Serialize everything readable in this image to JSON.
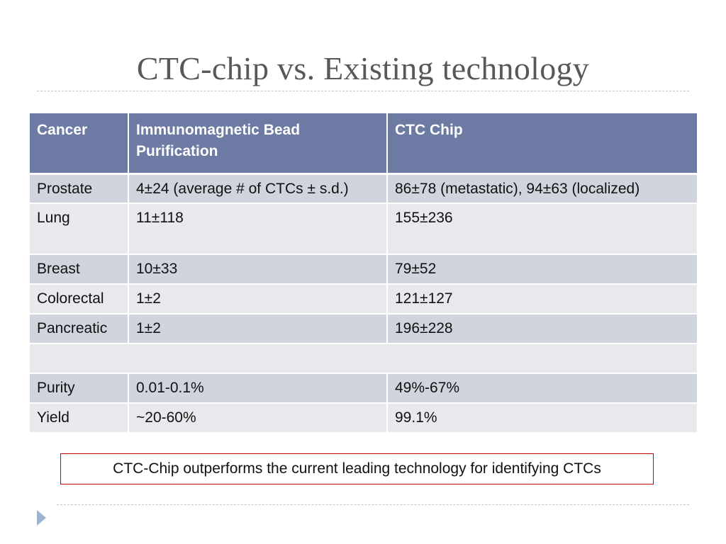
{
  "slide": {
    "title": "CTC-chip vs. Existing technology",
    "callout": "CTC-Chip outperforms the current leading technology for identifying CTCs",
    "bullet_icon": "triangle-bullet-icon"
  },
  "table": {
    "headers": [
      "Cancer",
      "Immunomagnetic Bead Purification",
      "CTC Chip"
    ],
    "rows": [
      [
        "Prostate",
        "4±24 (average # of CTCs ± s.d.)",
        "86±78 (metastatic), 94±63 (localized)"
      ],
      [
        "Lung",
        "11±118",
        "155±236"
      ],
      [
        "Breast",
        "10±33",
        "79±52"
      ],
      [
        "Colorectal",
        "1±2",
        "121±127"
      ],
      [
        "Pancreatic",
        "1±2",
        "196±228"
      ],
      [
        "",
        "",
        ""
      ],
      [
        "Purity",
        "0.01-0.1%",
        "49%-67%"
      ],
      [
        "Yield",
        "~20-60%",
        "99.1%"
      ]
    ]
  },
  "colors": {
    "header_bg": "#6d7aa3",
    "row_dark": "#d0d4dd",
    "row_light": "#e8e9ed",
    "title_text": "#585858",
    "callout_border": "#c00000",
    "bullet": "#9db3cf"
  }
}
